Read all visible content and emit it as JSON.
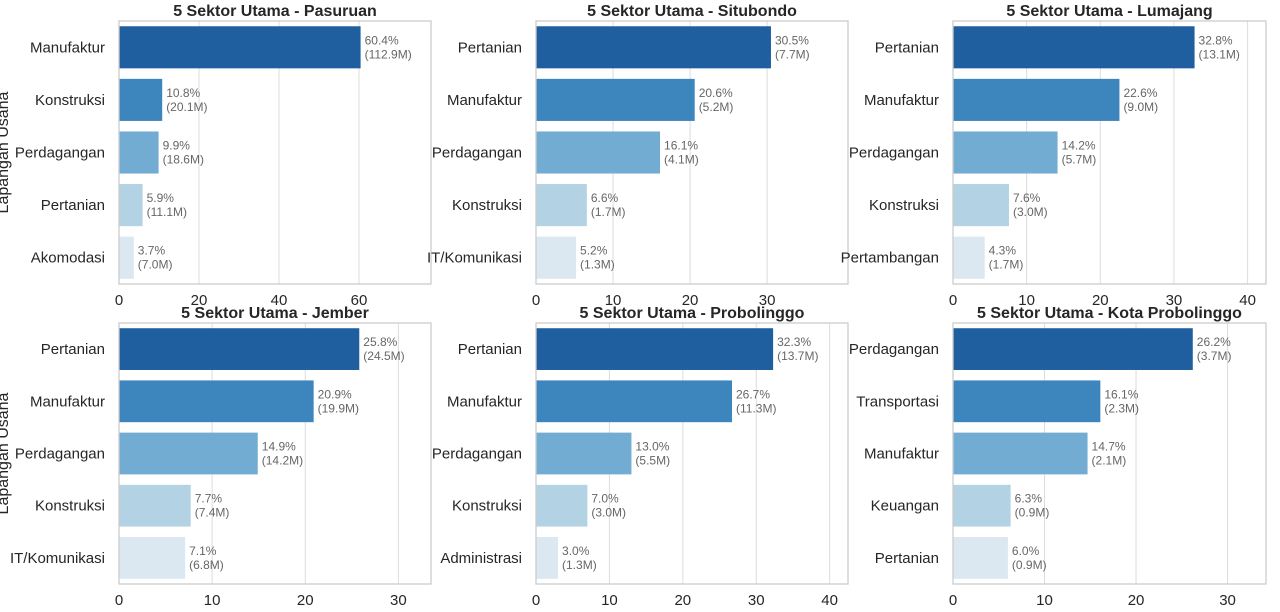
{
  "chart_data": [
    {
      "type": "bar",
      "orientation": "horizontal",
      "title": "5 Sektor Utama - Pasuruan",
      "ylabel": "Lapangan Usaha",
      "xlim": [
        0,
        78
      ],
      "xticks": [
        "0",
        "20",
        "40",
        "60"
      ],
      "xtick_values": [
        0,
        20,
        40,
        60
      ],
      "categories": [
        "Manufaktur",
        "Konstruksi",
        "Perdagangan",
        "Pertanian",
        "Akomodasi"
      ],
      "values": [
        60.4,
        10.8,
        9.9,
        5.9,
        3.7
      ],
      "labels_pct": [
        "60.4%",
        "10.8%",
        "9.9%",
        "5.9%",
        "3.7%"
      ],
      "labels_val": [
        "(112.9M)",
        "(20.1M)",
        "(18.6M)",
        "(11.1M)",
        "(7.0M)"
      ],
      "grid": "x"
    },
    {
      "type": "bar",
      "orientation": "horizontal",
      "title": "5 Sektor Utama - Situbondo",
      "xlim": [
        0,
        40.5
      ],
      "xticks": [
        "0",
        "10",
        "20",
        "30"
      ],
      "xtick_values": [
        0,
        10,
        20,
        30
      ],
      "categories": [
        "Pertanian",
        "Manufaktur",
        "Perdagangan",
        "Konstruksi",
        "IT/Komunikasi"
      ],
      "values": [
        30.5,
        20.6,
        16.1,
        6.6,
        5.2
      ],
      "labels_pct": [
        "30.5%",
        "20.6%",
        "16.1%",
        "6.6%",
        "5.2%"
      ],
      "labels_val": [
        "(7.7M)",
        "(5.2M)",
        "(4.1M)",
        "(1.7M)",
        "(1.3M)"
      ],
      "grid": "x"
    },
    {
      "type": "bar",
      "orientation": "horizontal",
      "title": "5 Sektor Utama - Lumajang",
      "xlim": [
        0,
        42.5
      ],
      "xticks": [
        "0",
        "10",
        "20",
        "30",
        "40"
      ],
      "xtick_values": [
        0,
        10,
        20,
        30,
        40
      ],
      "categories": [
        "Pertanian",
        "Manufaktur",
        "Perdagangan",
        "Konstruksi",
        "Pertambangan"
      ],
      "values": [
        32.8,
        22.6,
        14.2,
        7.6,
        4.3
      ],
      "labels_pct": [
        "32.8%",
        "22.6%",
        "14.2%",
        "7.6%",
        "4.3%"
      ],
      "labels_val": [
        "(13.1M)",
        "(9.0M)",
        "(5.7M)",
        "(3.0M)",
        "(1.7M)"
      ],
      "grid": "x"
    },
    {
      "type": "bar",
      "orientation": "horizontal",
      "title": "5 Sektor Utama - Jember",
      "ylabel": "Lapangan Usaha",
      "xlim": [
        0,
        33.5
      ],
      "xticks": [
        "0",
        "10",
        "20",
        "30"
      ],
      "xtick_values": [
        0,
        10,
        20,
        30
      ],
      "categories": [
        "Pertanian",
        "Manufaktur",
        "Perdagangan",
        "Konstruksi",
        "IT/Komunikasi"
      ],
      "values": [
        25.8,
        20.9,
        14.9,
        7.7,
        7.1
      ],
      "labels_pct": [
        "25.8%",
        "20.9%",
        "14.9%",
        "7.7%",
        "7.1%"
      ],
      "labels_val": [
        "(24.5M)",
        "(19.9M)",
        "(14.2M)",
        "(7.4M)",
        "(6.8M)"
      ],
      "grid": "x"
    },
    {
      "type": "bar",
      "orientation": "horizontal",
      "title": "5 Sektor Utama - Probolinggo",
      "xlim": [
        0,
        42.5
      ],
      "xticks": [
        "0",
        "10",
        "20",
        "30",
        "40"
      ],
      "xtick_values": [
        0,
        10,
        20,
        30,
        40
      ],
      "categories": [
        "Pertanian",
        "Manufaktur",
        "Perdagangan",
        "Konstruksi",
        "Administrasi"
      ],
      "values": [
        32.3,
        26.7,
        13.0,
        7.0,
        3.0
      ],
      "labels_pct": [
        "32.3%",
        "26.7%",
        "13.0%",
        "7.0%",
        "3.0%"
      ],
      "labels_val": [
        "(13.7M)",
        "(11.3M)",
        "(5.5M)",
        "(3.0M)",
        "(1.3M)"
      ],
      "grid": "x"
    },
    {
      "type": "bar",
      "orientation": "horizontal",
      "title": "5 Sektor Utama - Kota Probolinggo",
      "xlim": [
        0,
        34.2
      ],
      "xticks": [
        "0",
        "10",
        "20",
        "30"
      ],
      "xtick_values": [
        0,
        10,
        20,
        30
      ],
      "categories": [
        "Perdagangan",
        "Transportasi",
        "Manufaktur",
        "Keuangan",
        "Pertanian"
      ],
      "values": [
        26.2,
        16.1,
        14.7,
        6.3,
        6.0
      ],
      "labels_pct": [
        "26.2%",
        "16.1%",
        "14.7%",
        "6.3%",
        "6.0%"
      ],
      "labels_val": [
        "(3.7M)",
        "(2.3M)",
        "(2.1M)",
        "(0.9M)",
        "(0.9M)"
      ],
      "grid": "x"
    }
  ],
  "colors": {
    "bars": [
      "#1f5f9f",
      "#3d85bd",
      "#72acd2",
      "#b3d2e3",
      "#dbe7f1"
    ],
    "grid": "#dcdcdc",
    "spine": "#cccccc",
    "text": "#262626",
    "annotation": "#666666"
  }
}
